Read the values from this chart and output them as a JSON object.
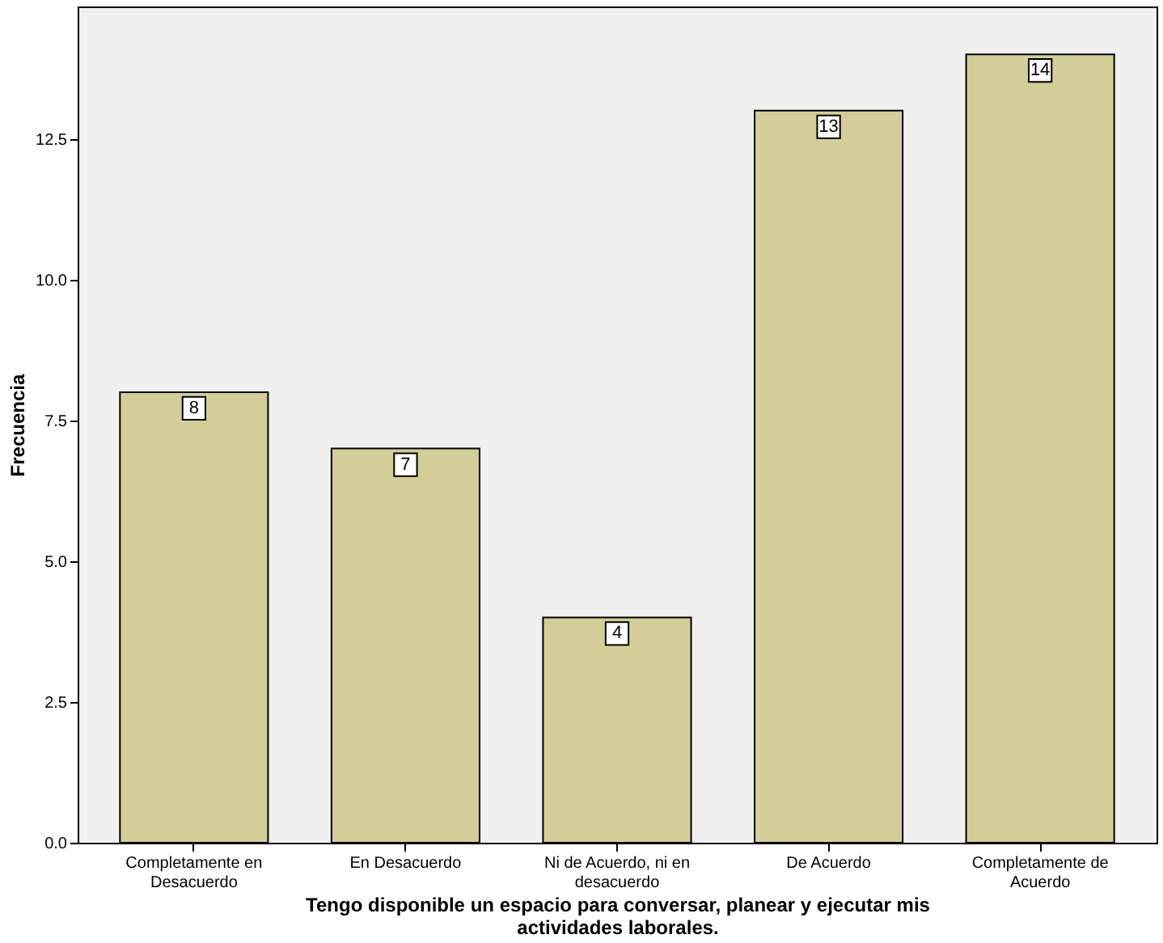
{
  "chart_data": {
    "type": "bar",
    "xlabel": "Tengo disponible un espacio para conversar, planear y ejecutar mis actividades laborales.",
    "ylabel": "Frecuencia",
    "categories": [
      "Completamente en Desacuerdo",
      "En Desacuerdo",
      "Ni de Acuerdo, ni en desacuerdo",
      "De Acuerdo",
      "Completamente de Acuerdo"
    ],
    "values": [
      8,
      7,
      4,
      13,
      14
    ],
    "color": "#d3ce97",
    "ylim": [
      0,
      14.85
    ],
    "yticks": [
      {
        "value": 0,
        "label": "0.0"
      },
      2.5,
      {
        "value": 5,
        "label": "5.0"
      },
      7.5,
      {
        "value": 10,
        "label": "10.0"
      },
      12.5
    ],
    "data_labels": true,
    "grid": false
  }
}
